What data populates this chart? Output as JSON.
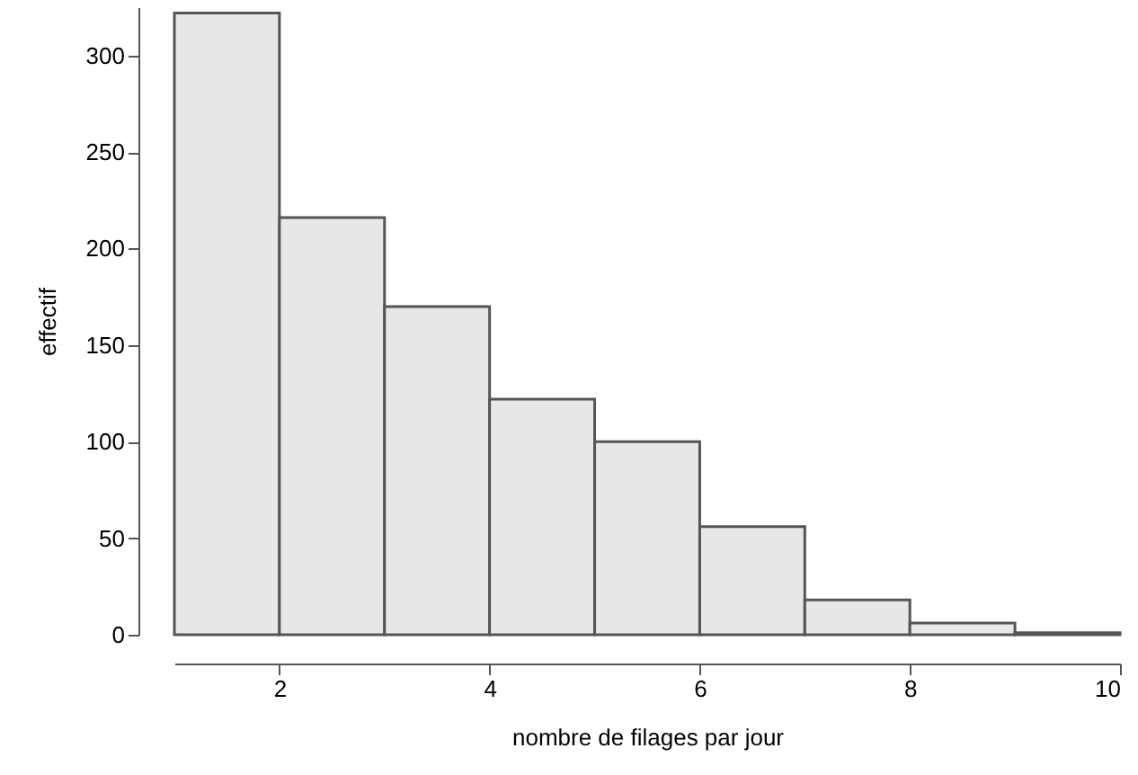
{
  "chart_data": {
    "type": "histogram",
    "xlabel": "nombre de filages par jour",
    "ylabel": "effectif",
    "bins": [
      1,
      2,
      3,
      4,
      5,
      6,
      7,
      8,
      9,
      10
    ],
    "values": [
      322,
      216,
      170,
      122,
      100,
      56,
      18,
      6,
      1
    ],
    "color": "#e6e7e9",
    "xlim": [
      1,
      10
    ],
    "xticks": [
      2,
      4,
      6,
      8,
      10
    ],
    "ylim": [
      0,
      325
    ],
    "yticks": [
      0,
      50,
      100,
      150,
      200,
      250,
      300
    ],
    "grid": false
  }
}
